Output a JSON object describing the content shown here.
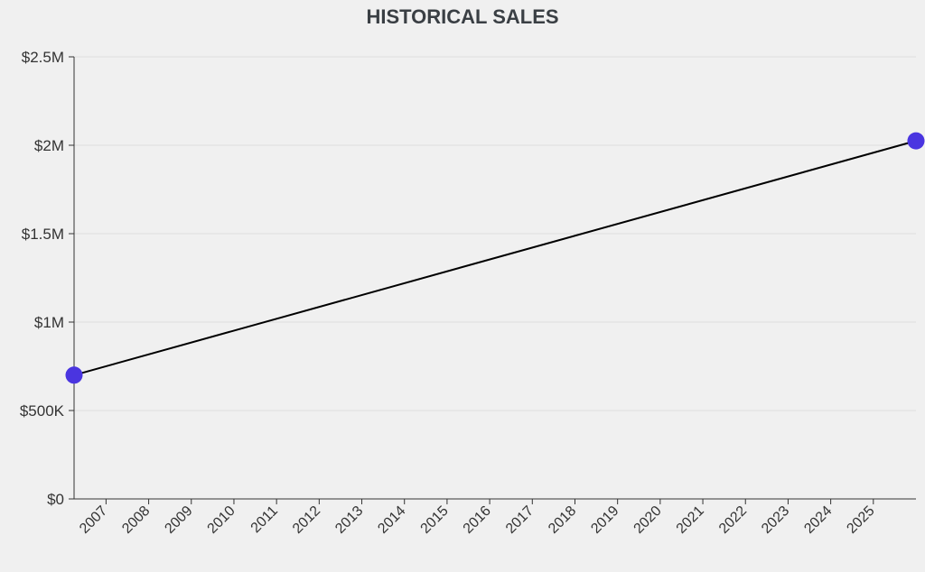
{
  "chart_data": {
    "type": "line",
    "title": "HISTORICAL SALES",
    "xlabel": "",
    "ylabel": "",
    "x_ticks": [
      "2007",
      "2008",
      "2009",
      "2010",
      "2011",
      "2012",
      "2013",
      "2014",
      "2015",
      "2016",
      "2017",
      "2018",
      "2019",
      "2020",
      "2021",
      "2022",
      "2023",
      "2024",
      "2025"
    ],
    "y_ticks": [
      {
        "value": 0,
        "label": "$0"
      },
      {
        "value": 500000,
        "label": "$500K"
      },
      {
        "value": 1000000,
        "label": "$1M"
      },
      {
        "value": 1500000,
        "label": "$1.5M"
      },
      {
        "value": 2000000,
        "label": "$2M"
      },
      {
        "value": 2500000,
        "label": "$2.5M"
      }
    ],
    "ylim": [
      0,
      2500000
    ],
    "xlim": [
      "2006-04",
      "2026-01"
    ],
    "grid": true,
    "series": [
      {
        "color": "#4a35e0",
        "points": [
          {
            "x": "2006-04",
            "y": 700000
          },
          {
            "x": "2026-01",
            "y": 2025000
          }
        ]
      }
    ]
  }
}
